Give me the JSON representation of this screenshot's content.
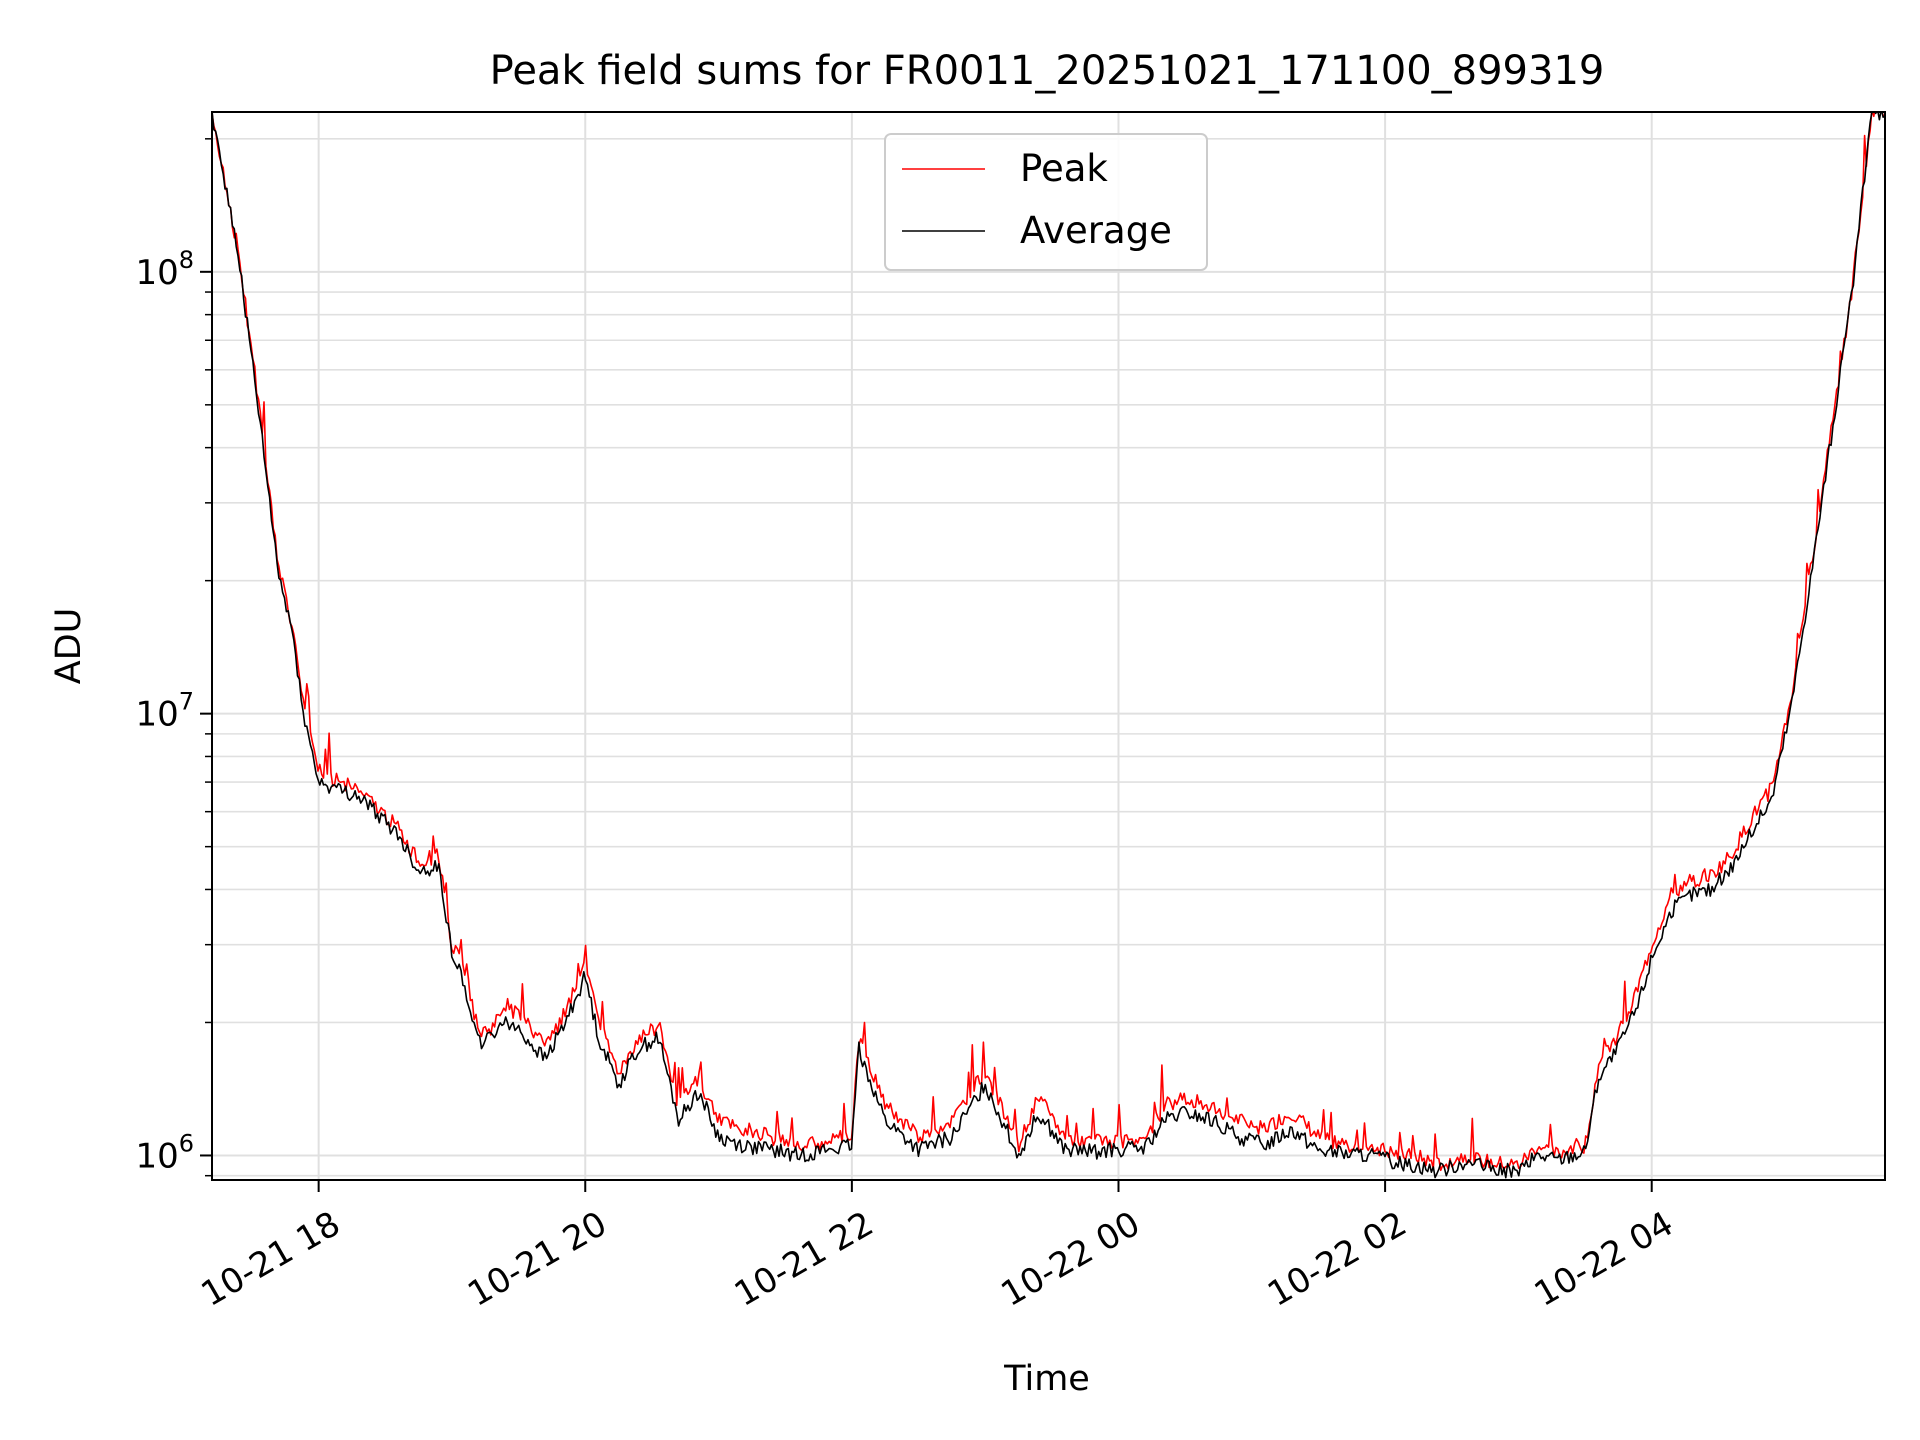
{
  "chart_data": {
    "type": "line",
    "title": "Peak field sums for FR0011_20251021_171100_899319",
    "xlabel": "Time",
    "ylabel": "ADU",
    "x_unit": "hours",
    "xlim": [
      -0.8,
      11.75
    ],
    "ylim": [
      880000,
      230000000
    ],
    "yscale": "log",
    "grid": true,
    "legend_position": "top-center",
    "x_ticks": [
      {
        "x": 0,
        "label": "10-21 18"
      },
      {
        "x": 2,
        "label": "10-21 20"
      },
      {
        "x": 4,
        "label": "10-21 22"
      },
      {
        "x": 6,
        "label": "10-22 00"
      },
      {
        "x": 8,
        "label": "10-22 02"
      },
      {
        "x": 10,
        "label": "10-22 04"
      }
    ],
    "y_ticks": [
      {
        "y": 1000000,
        "base": "10",
        "exp": "6"
      },
      {
        "y": 10000000,
        "base": "10",
        "exp": "7"
      },
      {
        "y": 100000000,
        "base": "10",
        "exp": "8"
      }
    ],
    "series": [
      {
        "name": "Peak",
        "color": "#ff0000",
        "x": [
          -0.8,
          -0.6,
          -0.45,
          -0.3,
          -0.2,
          -0.1,
          0.0,
          0.15,
          0.3,
          0.45,
          0.6,
          0.75,
          0.9,
          1.0,
          1.1,
          1.2,
          1.3,
          1.4,
          1.55,
          1.7,
          1.85,
          2.0,
          2.1,
          2.25,
          2.4,
          2.55,
          2.7,
          2.85,
          3.0,
          3.2,
          3.4,
          3.6,
          3.8,
          4.0,
          4.05,
          4.25,
          4.5,
          4.75,
          5.0,
          5.25,
          5.4,
          5.6,
          5.8,
          6.0,
          6.2,
          6.35,
          6.5,
          6.7,
          6.9,
          7.1,
          7.3,
          7.5,
          7.7,
          7.9,
          8.1,
          8.25,
          8.4,
          8.6,
          8.8,
          9.0,
          9.15,
          9.3,
          9.4,
          9.5,
          9.6,
          9.75,
          9.9,
          10.0,
          10.15,
          10.3,
          10.45,
          10.6,
          10.75,
          10.9,
          11.05,
          11.2,
          11.35,
          11.5,
          11.65
        ],
        "y": [
          230000000,
          110000000,
          50000000,
          21500000,
          16000000,
          10000000,
          7400000,
          7000000,
          6700000,
          6100000,
          5500000,
          4600000,
          4800000,
          3000000,
          2600000,
          1900000,
          1950000,
          2200000,
          2000000,
          1750000,
          2100000,
          2700000,
          2000000,
          1550000,
          1850000,
          1950000,
          1300000,
          1500000,
          1200000,
          1150000,
          1100000,
          1050000,
          1080000,
          1120000,
          1850000,
          1300000,
          1100000,
          1200000,
          1550000,
          1050000,
          1350000,
          1100000,
          1070000,
          1080000,
          1100000,
          1300000,
          1350000,
          1280000,
          1200000,
          1150000,
          1250000,
          1100000,
          1060000,
          1050000,
          1000000,
          990000,
          950000,
          1000000,
          960000,
          950000,
          1050000,
          1000000,
          1050000,
          1050000,
          1600000,
          1900000,
          2400000,
          3000000,
          3900000,
          4200000,
          4300000,
          4800000,
          5800000,
          6800000,
          11000000,
          22000000,
          45000000,
          90000000,
          230000000
        ]
      },
      {
        "name": "Average",
        "color": "#000000",
        "x": [
          -0.8,
          -0.6,
          -0.45,
          -0.3,
          -0.2,
          -0.1,
          0.0,
          0.15,
          0.3,
          0.45,
          0.6,
          0.75,
          0.9,
          1.0,
          1.1,
          1.2,
          1.3,
          1.4,
          1.55,
          1.7,
          1.85,
          2.0,
          2.1,
          2.25,
          2.4,
          2.55,
          2.7,
          2.85,
          3.0,
          3.2,
          3.4,
          3.6,
          3.8,
          4.0,
          4.05,
          4.25,
          4.5,
          4.75,
          5.0,
          5.25,
          5.4,
          5.6,
          5.8,
          6.0,
          6.2,
          6.35,
          6.5,
          6.7,
          6.9,
          7.1,
          7.3,
          7.5,
          7.7,
          7.9,
          8.1,
          8.25,
          8.4,
          8.6,
          8.8,
          9.0,
          9.15,
          9.3,
          9.4,
          9.5,
          9.6,
          9.75,
          9.9,
          10.0,
          10.15,
          10.3,
          10.45,
          10.6,
          10.75,
          10.9,
          11.05,
          11.2,
          11.35,
          11.5,
          11.65
        ],
        "y": [
          230000000,
          108000000,
          48000000,
          20500000,
          15500000,
          9500000,
          7000000,
          6700000,
          6500000,
          5900000,
          5300000,
          4400000,
          4500000,
          2900000,
          2400000,
          1800000,
          1850000,
          2050000,
          1850000,
          1650000,
          2000000,
          2550000,
          1850000,
          1450000,
          1750000,
          1850000,
          1200000,
          1400000,
          1100000,
          1050000,
          1030000,
          1000000,
          1030000,
          1050000,
          1750000,
          1200000,
          1030000,
          1100000,
          1450000,
          1000000,
          1250000,
          1030000,
          1020000,
          1030000,
          1040000,
          1200000,
          1250000,
          1200000,
          1100000,
          1060000,
          1150000,
          1030000,
          1010000,
          1000000,
          960000,
          950000,
          920000,
          970000,
          930000,
          920000,
          1000000,
          980000,
          1000000,
          1020000,
          1500000,
          1750000,
          2200000,
          2800000,
          3600000,
          3900000,
          4000000,
          4500000,
          5400000,
          6400000,
          10500000,
          21000000,
          43000000,
          88000000,
          230000000
        ]
      }
    ]
  }
}
